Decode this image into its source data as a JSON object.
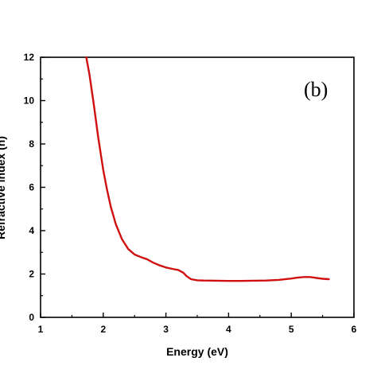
{
  "chart_data": {
    "type": "line",
    "panel_label": "(b)",
    "xlabel": "Energy (eV)",
    "ylabel": "Refractive index (n)",
    "xlim": [
      1,
      6
    ],
    "ylim": [
      0,
      12
    ],
    "x_ticks": [
      1,
      2,
      3,
      4,
      5,
      6
    ],
    "y_ticks": [
      0,
      2,
      4,
      6,
      8,
      10,
      12
    ],
    "grid": false,
    "series_color": "#d01010",
    "series": [
      {
        "x": [
          1.73,
          1.78,
          1.85,
          1.92,
          2.0,
          2.06,
          2.12,
          2.2,
          2.3,
          2.4,
          2.5,
          2.6,
          2.7,
          2.8,
          2.9,
          3.0,
          3.1,
          3.2,
          3.28,
          3.33,
          3.4,
          3.5,
          3.6,
          3.8,
          4.0,
          4.2,
          4.4,
          4.6,
          4.8,
          5.0,
          5.1,
          5.2,
          5.3,
          5.4,
          5.5,
          5.6
        ],
        "y": [
          12.0,
          11.2,
          9.8,
          8.3,
          6.8,
          5.9,
          5.1,
          4.3,
          3.6,
          3.15,
          2.9,
          2.78,
          2.68,
          2.52,
          2.4,
          2.3,
          2.24,
          2.18,
          2.05,
          1.9,
          1.76,
          1.71,
          1.7,
          1.69,
          1.68,
          1.68,
          1.69,
          1.7,
          1.73,
          1.79,
          1.83,
          1.86,
          1.86,
          1.82,
          1.78,
          1.76
        ]
      }
    ]
  }
}
